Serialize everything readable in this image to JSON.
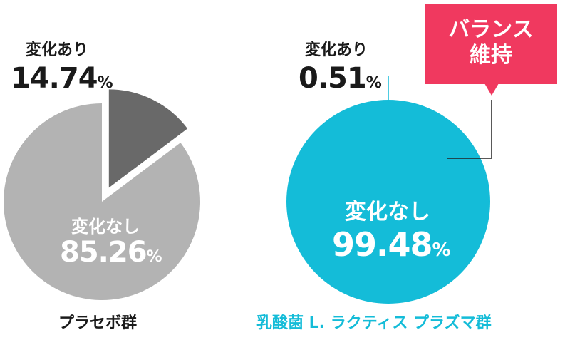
{
  "chart_data": [
    {
      "type": "pie",
      "group_label": "プラセボ群",
      "slices": [
        {
          "label": "変化あり",
          "value": 14.74,
          "unit": "%",
          "color": "#696969",
          "exploded": true
        },
        {
          "label": "変化なし",
          "value": 85.26,
          "unit": "%",
          "color": "#b3b3b3",
          "exploded": false
        }
      ]
    },
    {
      "type": "pie",
      "group_label": "乳酸菌 L. ラクティス プラズマ群",
      "slices": [
        {
          "label": "変化あり",
          "value": 0.51,
          "unit": "%",
          "color": "#14bcd8",
          "exploded": false
        },
        {
          "label": "変化なし",
          "value": 99.48,
          "unit": "%",
          "color": "#14bcd8",
          "exploded": false
        }
      ]
    }
  ],
  "callout": {
    "line1": "バランス",
    "line2": "維持",
    "color": "#f0395f"
  },
  "label_text_color": "#1a1a1a",
  "group_label_colors": {
    "placebo": "#1a1a1a",
    "plasma": "#14bcd8"
  }
}
